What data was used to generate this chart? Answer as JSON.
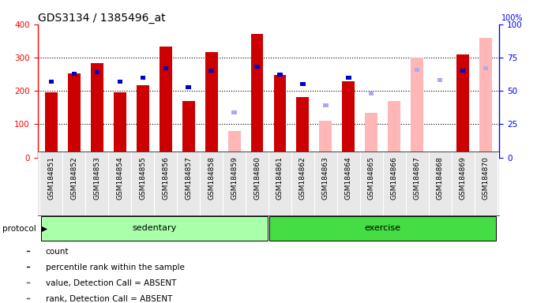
{
  "title": "GDS3134 / 1385496_at",
  "samples": [
    "GSM184851",
    "GSM184852",
    "GSM184853",
    "GSM184854",
    "GSM184855",
    "GSM184856",
    "GSM184857",
    "GSM184858",
    "GSM184859",
    "GSM184860",
    "GSM184861",
    "GSM184862",
    "GSM184863",
    "GSM184864",
    "GSM184865",
    "GSM184866",
    "GSM184867",
    "GSM184868",
    "GSM184869",
    "GSM184870"
  ],
  "count": [
    196,
    252,
    284,
    196,
    218,
    332,
    170,
    316,
    null,
    370,
    248,
    182,
    null,
    228,
    null,
    null,
    null,
    null,
    310,
    null
  ],
  "percentile_rank": [
    57,
    63,
    64,
    57,
    60,
    67,
    53,
    65,
    null,
    68,
    62,
    55,
    null,
    60,
    null,
    null,
    null,
    null,
    65,
    null
  ],
  "value_absent": [
    null,
    null,
    null,
    null,
    null,
    null,
    null,
    null,
    80,
    null,
    null,
    null,
    110,
    null,
    135,
    170,
    300,
    null,
    null,
    358
  ],
  "rank_absent": [
    null,
    null,
    null,
    null,
    null,
    null,
    null,
    null,
    34,
    null,
    null,
    null,
    39,
    null,
    48,
    null,
    66,
    58,
    null,
    67
  ],
  "sedentary_count": 10,
  "exercise_count": 10,
  "ylim_left": [
    0,
    400
  ],
  "ylim_right": [
    0,
    100
  ],
  "yticks_left": [
    0,
    100,
    200,
    300,
    400
  ],
  "yticks_right": [
    0,
    25,
    50,
    75,
    100
  ],
  "count_color": "#cc0000",
  "rank_color": "#0000cc",
  "value_absent_color": "#ffb6b6",
  "rank_absent_color": "#aaaaee",
  "sedentary_color": "#aaffaa",
  "exercise_color": "#44dd44",
  "bg_color": "#e8e8e8"
}
